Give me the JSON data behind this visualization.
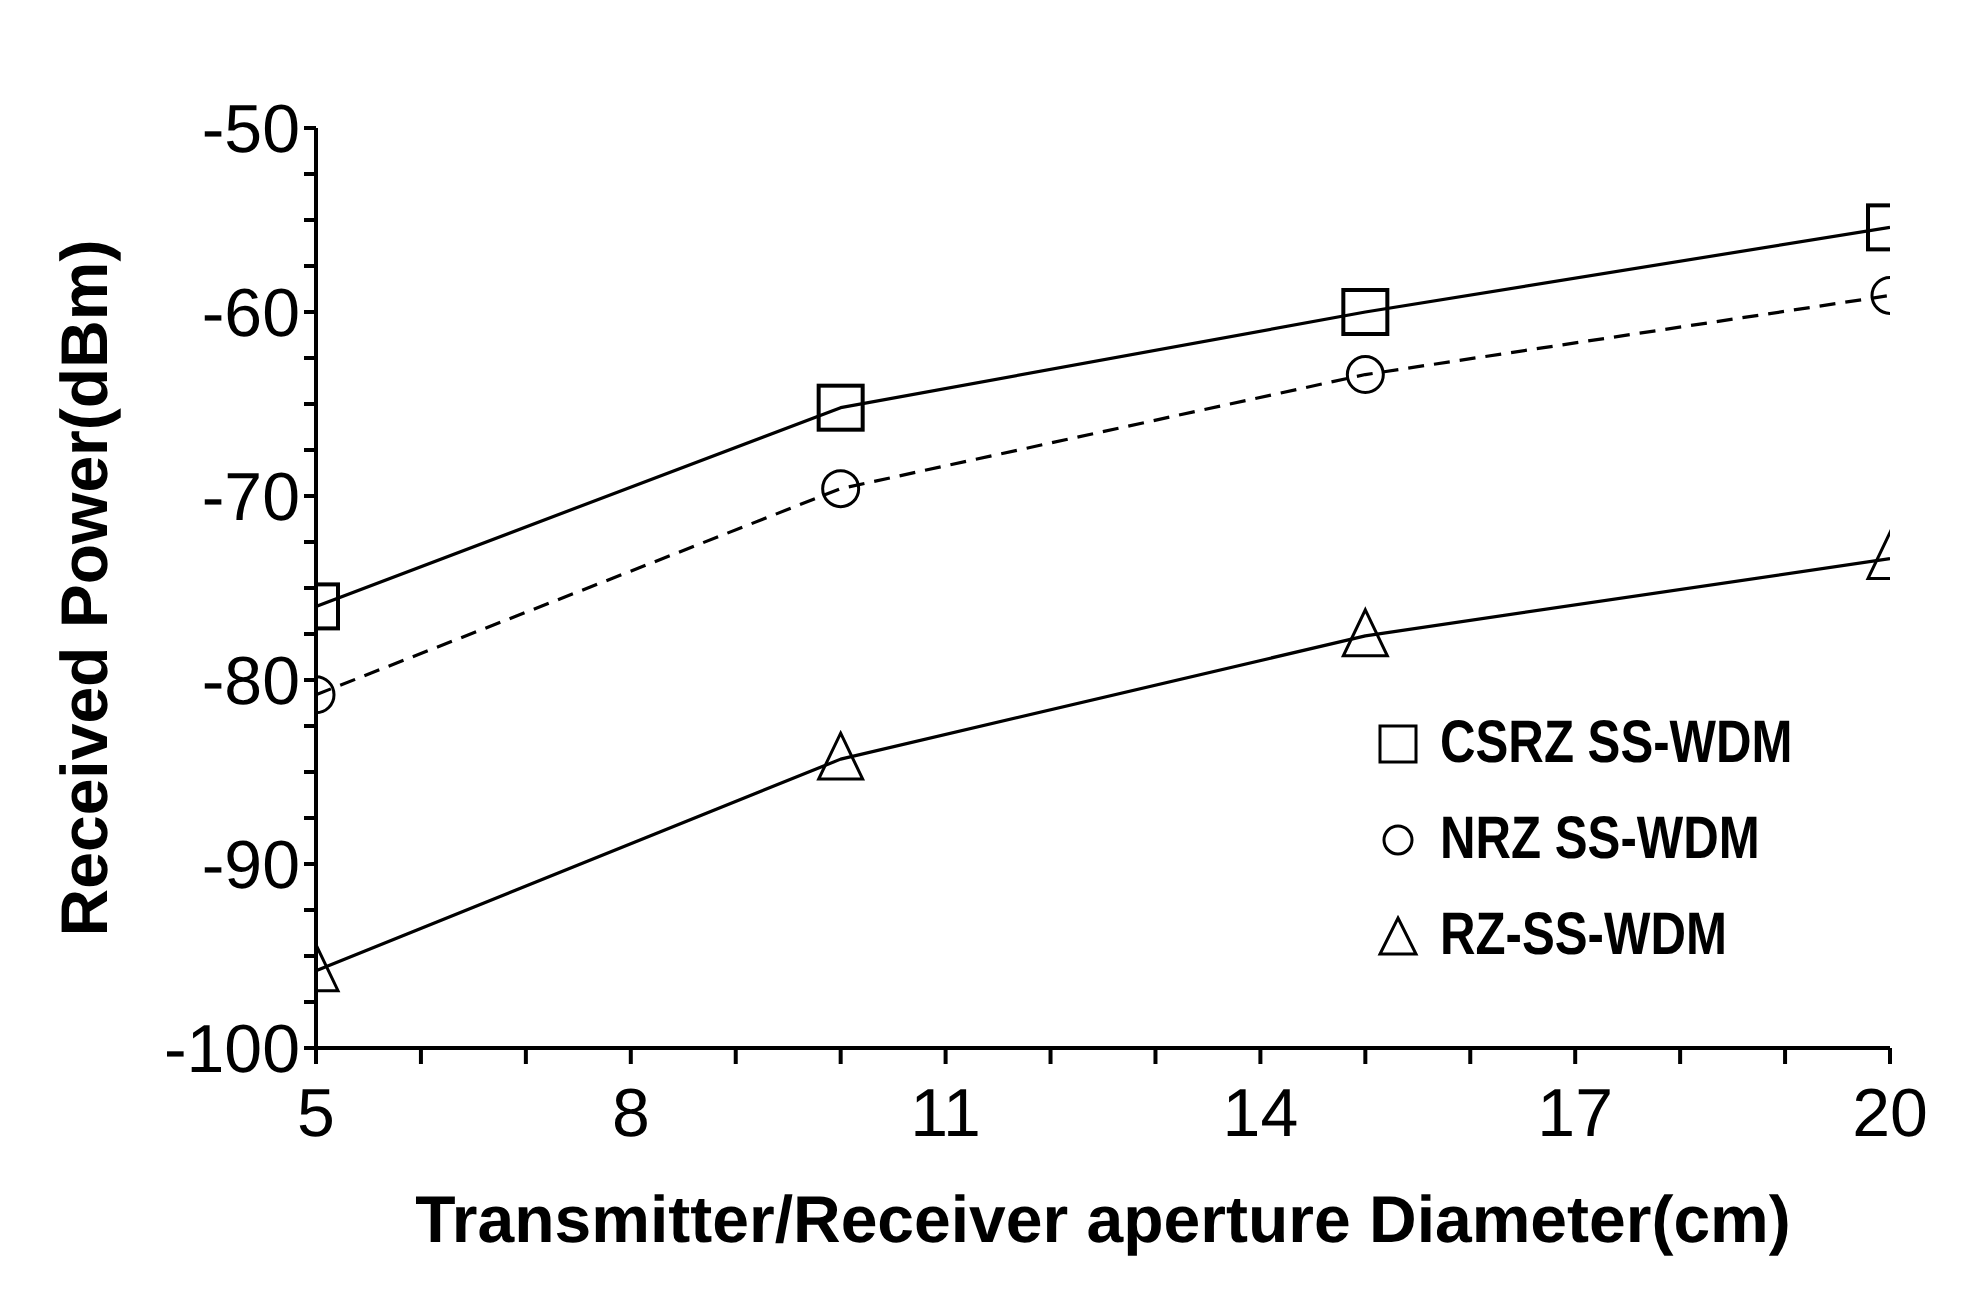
{
  "chart_data": {
    "type": "line",
    "xlabel": "Transmitter/Receiver aperture Diameter(cm)",
    "ylabel": "Received Power(dBm)",
    "x": [
      5,
      10,
      15,
      20
    ],
    "series": [
      {
        "name": "CSRZ SS-WDM",
        "color": "#000000",
        "marker": "square",
        "line_style": "solid",
        "values": [
          -76.0,
          -65.2,
          -60.0,
          -55.4
        ]
      },
      {
        "name": "NRZ SS-WDM",
        "color": "#000000",
        "marker": "circle",
        "line_style": "dashed",
        "values": [
          -80.8,
          -69.6,
          -63.4,
          -59.1
        ]
      },
      {
        "name": "RZ-SS-WDM",
        "color": "#000000",
        "marker": "triangle",
        "line_style": "solid",
        "values": [
          -95.8,
          -84.3,
          -77.6,
          -73.4
        ]
      }
    ],
    "xlim": [
      5,
      20
    ],
    "xticks": [
      5,
      {
        "value": 6,
        "label": null
      },
      {
        "value": 7,
        "label": null
      },
      8,
      {
        "value": 9,
        "label": null
      },
      {
        "value": 10,
        "label": null
      },
      11,
      {
        "value": 12,
        "label": null
      },
      {
        "value": 13,
        "label": null
      },
      14,
      {
        "value": 15,
        "label": null
      },
      {
        "value": 16,
        "label": null
      },
      17,
      {
        "value": 18,
        "label": null
      },
      {
        "value": 19,
        "label": null
      },
      20
    ],
    "ylim": [
      -100,
      -50
    ],
    "yticks": [
      -100,
      {
        "value": -97.5,
        "label": null
      },
      {
        "value": -95,
        "label": null
      },
      {
        "value": -92.5,
        "label": null
      },
      -90,
      {
        "value": -87.5,
        "label": null
      },
      {
        "value": -85,
        "label": null
      },
      {
        "value": -82.5,
        "label": null
      },
      -80,
      {
        "value": -77.5,
        "label": null
      },
      {
        "value": -75,
        "label": null
      },
      {
        "value": -72.5,
        "label": null
      },
      -70,
      {
        "value": -67.5,
        "label": null
      },
      {
        "value": -65,
        "label": null
      },
      {
        "value": -62.5,
        "label": null
      },
      -60,
      {
        "value": -57.5,
        "label": null
      },
      {
        "value": -55,
        "label": null
      },
      {
        "value": -52.5,
        "label": null
      },
      -50
    ],
    "grid": false,
    "legend": "bottom right"
  }
}
